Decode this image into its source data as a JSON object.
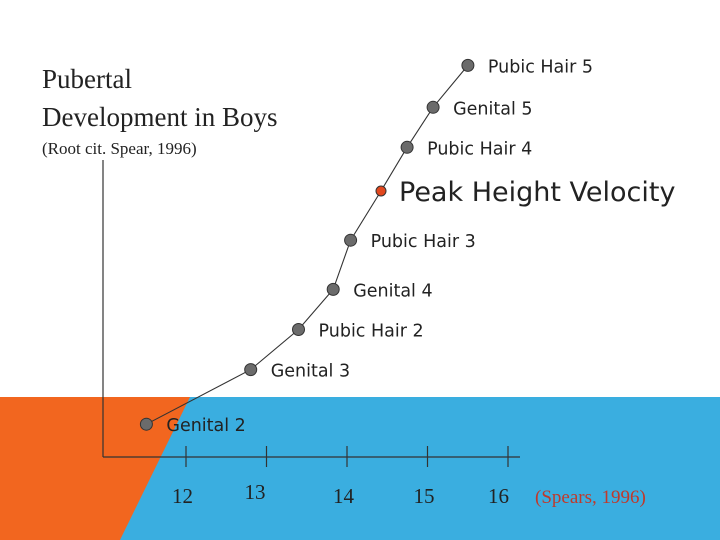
{
  "colors": {
    "background": "#ffffff",
    "orange_band": "#f2661f",
    "blue_band": "#3aaee0",
    "line": "#333333",
    "marker_fill": "#6b6b6b",
    "peak_marker": "#e2481e",
    "peak_text": "#e2481e",
    "citation_text": "#c0392b"
  },
  "slide": {
    "title_line1": "Pubertal",
    "title_line2": "Development in Boys",
    "subtitle": "(Root cit. Spear, 1996)",
    "citation": "(Spears, 1996)"
  },
  "chart_data": {
    "type": "line",
    "title": "Pubertal Development in Boys",
    "xlabel": "",
    "ylabel": "",
    "x_ticks": [
      "12",
      "13",
      "14",
      "15",
      "16"
    ],
    "xlim": [
      11.2,
      16
    ],
    "ylim": [
      0,
      10
    ],
    "grid": false,
    "series": [
      {
        "points": [
          {
            "x": 11.7,
            "y": 0.9,
            "label": "Genital 2"
          },
          {
            "x": 12.9,
            "y": 2.4,
            "label": "Genital 3"
          },
          {
            "x": 13.45,
            "y": 3.5,
            "label": "Pubic Hair 2"
          },
          {
            "x": 13.85,
            "y": 4.6,
            "label": "Genital 4"
          },
          {
            "x": 14.05,
            "y": 5.95,
            "label": "Pubic Hair 3"
          },
          {
            "x": 14.4,
            "y": 7.3,
            "label": "Peak Height Velocity",
            "highlight": true
          },
          {
            "x": 14.7,
            "y": 8.5,
            "label": "Pubic Hair 4"
          },
          {
            "x": 15.0,
            "y": 9.6,
            "label": "Genital 5"
          },
          {
            "x": 15.4,
            "y": 10.75,
            "label": "Pubic Hair 5"
          }
        ]
      }
    ]
  }
}
